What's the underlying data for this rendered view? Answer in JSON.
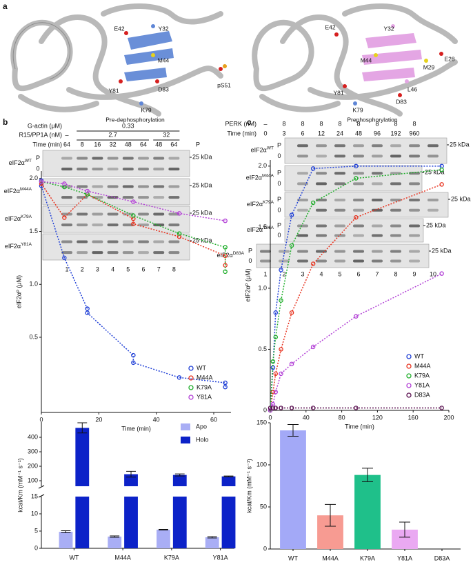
{
  "panel_labels": [
    "a",
    "b",
    "c"
  ],
  "structures": [
    {
      "caption": "Pre-dephosphorylation",
      "residues": [
        "E42",
        "Y32",
        "M44",
        "Y81",
        "D83",
        "K79",
        "pS51"
      ]
    },
    {
      "caption": "Prephosphorylation",
      "residues": [
        "E42",
        "Y32",
        "E28",
        "M44",
        "M29",
        "Y81",
        "L46",
        "K79",
        "D83"
      ]
    }
  ],
  "gels": [
    {
      "header_rows": [
        {
          "label": "G-actin (μM)",
          "entries": [
            "0.33"
          ]
        },
        {
          "label": "R15/PP1A (nM)",
          "entries": [
            "–",
            "2.7",
            "32"
          ]
        },
        {
          "label": "Time (min)",
          "entries": [
            "64",
            "8",
            "16",
            "32",
            "48",
            "64",
            "48",
            "64"
          ]
        }
      ],
      "column_label": "P",
      "rows": [
        {
          "protein": "eIF2α",
          "variant": "WT",
          "bands": [
            "P",
            "0"
          ],
          "marker": "25 kDa"
        },
        {
          "protein": "eIF2α",
          "variant": "M44A",
          "marker": "25 kDa"
        },
        {
          "protein": "eIF2α",
          "variant": "K79A",
          "marker": "25 kDa"
        },
        {
          "protein": "eIF2α",
          "variant": "Y81A",
          "marker": "25 kDa"
        }
      ],
      "lanes": [
        "1",
        "2",
        "3",
        "4",
        "5",
        "6",
        "7",
        "8"
      ]
    },
    {
      "header_rows": [
        {
          "label": "PERK (nM)",
          "entries": [
            "–",
            "8",
            "8",
            "8",
            "8",
            "8",
            "8",
            "8",
            "8"
          ]
        },
        {
          "label": "Time (min)",
          "entries": [
            "0",
            "3",
            "6",
            "12",
            "24",
            "48",
            "96",
            "192",
            "960"
          ]
        }
      ],
      "rows": [
        {
          "protein": "eIF2α",
          "variant": "WT",
          "bands": [
            "P",
            "0"
          ],
          "marker": "25 kDa"
        },
        {
          "protein": "eIF2α",
          "variant": "M44A",
          "bands": [
            "P",
            "0"
          ],
          "marker": "25 kDa"
        },
        {
          "protein": "eIF2α",
          "variant": "K79A",
          "bands": [
            "P",
            "0"
          ],
          "marker": "25 kDa"
        },
        {
          "protein": "eIF2α",
          "variant": "Y81A",
          "bands": [
            "P",
            "0"
          ],
          "marker": "25 kDa"
        },
        {
          "protein": "eIF2α",
          "variant": "D83A",
          "bands": [
            "P",
            "0"
          ],
          "marker": "25 kDa"
        }
      ],
      "lanes": [
        "1",
        "2",
        "3",
        "4",
        "5",
        "6",
        "7",
        "8",
        "9",
        "10"
      ]
    }
  ],
  "chart_data": [
    {
      "type": "line",
      "x_label": "Time (min)",
      "y_label": "eIF2αᴾ (μM)",
      "xlim": [
        0,
        66
      ],
      "xticks": [
        0,
        20,
        40,
        60
      ],
      "ylim": [
        -0.21,
        2.07
      ],
      "yticks": [
        0.5,
        {
          "value": 1,
          "label": "1.0"
        },
        1.5,
        {
          "value": 2,
          "label": "2.0"
        }
      ],
      "line_style": "dashed",
      "marker": "open-circle",
      "legend": "lower-right",
      "series": [
        {
          "name": "WT",
          "color": "#1f3fd6",
          "x": [
            0,
            0,
            8,
            16,
            16,
            32,
            32,
            48,
            64,
            64
          ],
          "values": [
            1.98,
            1.93,
            1.25,
            0.77,
            0.73,
            0.33,
            0.26,
            0.12,
            0.07,
            0.03
          ]
        },
        {
          "name": "M44A",
          "color": "#e8321e",
          "x": [
            0,
            8,
            16,
            32,
            32,
            48,
            64,
            64
          ],
          "values": [
            1.95,
            1.63,
            1.85,
            1.62,
            1.57,
            1.45,
            1.27,
            1.18
          ]
        },
        {
          "name": "K79A",
          "color": "#1fae2a",
          "x": [
            0,
            8,
            16,
            32,
            48,
            64,
            64
          ],
          "values": [
            1.97,
            1.92,
            1.85,
            1.65,
            1.48,
            1.35,
            1.12
          ]
        },
        {
          "name": "Y81A",
          "color": "#b23fd6",
          "x": [
            0,
            8,
            16,
            32,
            48,
            64
          ],
          "values": [
            1.97,
            1.95,
            1.88,
            1.78,
            1.67,
            1.6
          ]
        }
      ]
    },
    {
      "type": "line",
      "x_label": "Time (min)",
      "y_label": "eIF2αᴾ (μM)",
      "xlim": [
        0,
        200
      ],
      "xticks": [
        0,
        40,
        80,
        120,
        160,
        200
      ],
      "ylim": [
        0,
        2.05
      ],
      "yticks": [
        0,
        0.5,
        {
          "value": 1,
          "label": "1.0"
        },
        1.5,
        {
          "value": 2,
          "label": "2.0"
        }
      ],
      "line_style": "dashed",
      "marker": "open-circle",
      "legend": "lower-right",
      "series": [
        {
          "name": "WT",
          "color": "#1f3fd6",
          "x": [
            0,
            3,
            6,
            12,
            24,
            48,
            96,
            192
          ],
          "values": [
            0,
            0.35,
            0.8,
            1.15,
            1.6,
            1.98,
            2.0,
            2.0
          ]
        },
        {
          "name": "M44A",
          "color": "#e8321e",
          "x": [
            0,
            3,
            6,
            12,
            24,
            48,
            96,
            192
          ],
          "values": [
            0,
            0.15,
            0.3,
            0.5,
            0.8,
            1.2,
            1.58,
            1.85
          ]
        },
        {
          "name": "K79A",
          "color": "#1fae2a",
          "x": [
            0,
            3,
            6,
            12,
            24,
            48,
            96,
            192
          ],
          "values": [
            0,
            0.4,
            0.6,
            0.9,
            1.35,
            1.7,
            1.9,
            1.97
          ]
        },
        {
          "name": "Y81A",
          "color": "#b23fd6",
          "x": [
            0,
            3,
            6,
            12,
            24,
            48,
            96,
            192
          ],
          "values": [
            0,
            0.05,
            0.15,
            0.3,
            0.38,
            0.52,
            0.77,
            1.12
          ]
        },
        {
          "name": "D83A",
          "color": "#5a1050",
          "x": [
            0,
            3,
            6,
            12,
            24,
            48,
            96,
            192
          ],
          "values": [
            0.02,
            0.02,
            0.02,
            0.02,
            0.02,
            0.02,
            0.02,
            0.02
          ]
        }
      ]
    },
    {
      "type": "bar",
      "y_label": "kcat/Km (mM⁻¹ s⁻¹)",
      "categories": [
        "WT",
        "M44A",
        "K79A",
        "Y81A"
      ],
      "ylim": [
        0,
        15
      ],
      "yticks": [
        0,
        5,
        10,
        15
      ],
      "ylim_upper": [
        62,
        505
      ],
      "yticks_upper": [
        100,
        200,
        300,
        400
      ],
      "legend": "upper-right",
      "series": [
        {
          "name": "Apo",
          "color": "#a9aef5",
          "values": [
            4.8,
            3.4,
            5.4,
            3.2
          ],
          "errors": [
            0.3,
            0.2,
            0.1,
            0.2
          ]
        },
        {
          "name": "Holo",
          "color": "#0c22c8",
          "values": [
            465,
            145,
            140,
            130
          ],
          "errors": [
            35,
            20,
            7,
            3
          ]
        }
      ]
    },
    {
      "type": "bar",
      "y_label": "kcat/Km (mM⁻¹ s⁻¹)",
      "categories": [
        "WT",
        "M44A",
        "K79A",
        "Y81A",
        "D83A"
      ],
      "values": [
        141,
        40,
        88,
        23,
        0
      ],
      "errors": [
        7,
        13,
        8,
        9,
        null
      ],
      "colors": [
        "#a3a9f7",
        "#f79b92",
        "#1fc08a",
        "#eaa9f2"
      ],
      "ylim": [
        0,
        150
      ],
      "yticks": [
        0,
        50,
        100,
        150
      ]
    }
  ]
}
